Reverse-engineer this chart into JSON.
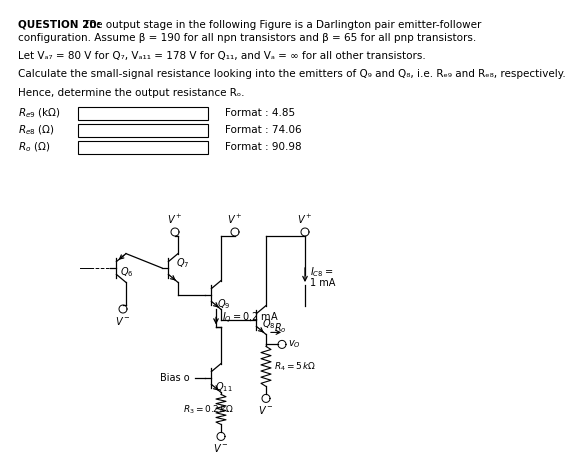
{
  "bg_color": "#ffffff",
  "text_color": "#000000",
  "title_bold": "QUESTION 20:",
  "title_rest": " The output stage in the following Figure is a Darlington pair emitter-follower",
  "line2": "configuration. Assume β = 190 for all npn transistors and β = 65 for all pnp transistors.",
  "line3": "Let Vₐ₇ = 80 V for Q₇, Vₐ₁₁ = 178 V for Q₁₁, and Vₐ = ∞ for all other transistors.",
  "line4": "Calculate the small-signal resistance looking into the emitters of Q₉ and Q₈, i.e. Rₑ₉ and Rₑ₈, respectively.",
  "line5": "Hence, determine the output resistance Rₒ.",
  "row1_label": "Re9 (kΩ)",
  "row2_label": "Re8 (Ω)",
  "row3_label": "Ro (Ω)",
  "format1": "Format : 4.85",
  "format2": "Format : 74.06",
  "format3": "Format : 90.98"
}
